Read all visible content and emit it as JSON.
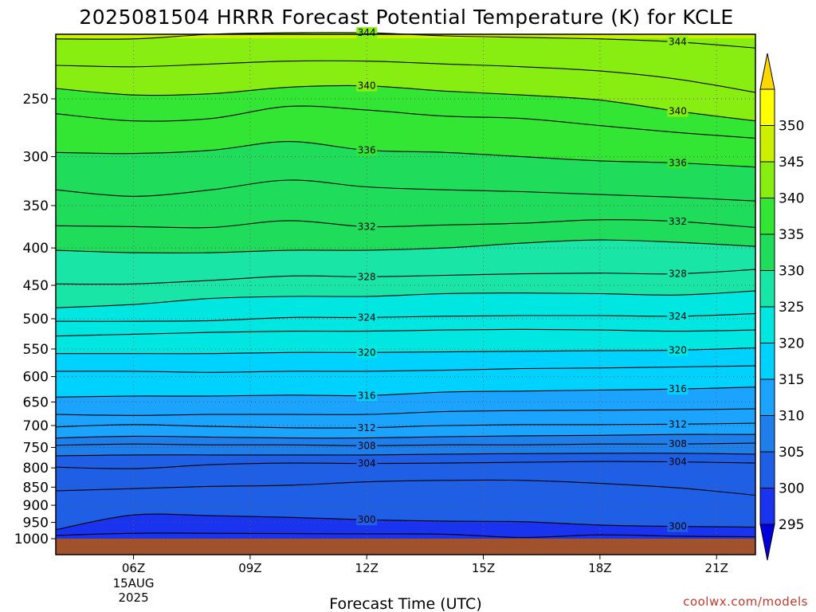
{
  "chart_data": {
    "type": "contour",
    "title": "2025081504 HRRR Forecast Potential Temperature (K) for KCLE",
    "xlabel": "Forecast Time (UTC)",
    "ylabel": "",
    "credit": "coolwx.com/models",
    "x_range_hours": [
      4,
      22
    ],
    "y_range_hpa": [
      200,
      1025
    ],
    "x_ticks": [
      {
        "hour": 6,
        "label": "06Z",
        "date_line1": "15AUG",
        "date_line2": "2025"
      },
      {
        "hour": 9,
        "label": "09Z"
      },
      {
        "hour": 12,
        "label": "12Z"
      },
      {
        "hour": 15,
        "label": "15Z"
      },
      {
        "hour": 18,
        "label": "18Z"
      },
      {
        "hour": 21,
        "label": "21Z"
      }
    ],
    "y_ticks": [
      {
        "p": 250,
        "label": "250"
      },
      {
        "p": 300,
        "label": "300"
      },
      {
        "p": 350,
        "label": "350"
      },
      {
        "p": 400,
        "label": "400"
      },
      {
        "p": 450,
        "label": "450"
      },
      {
        "p": 500,
        "label": "500"
      },
      {
        "p": 550,
        "label": "550"
      },
      {
        "p": 600,
        "label": "600"
      },
      {
        "p": 650,
        "label": "650"
      },
      {
        "p": 700,
        "label": "700"
      },
      {
        "p": 750,
        "label": "750"
      },
      {
        "p": 800,
        "label": "800"
      },
      {
        "p": 850,
        "label": "850"
      },
      {
        "p": 900,
        "label": "900"
      },
      {
        "p": 950,
        "label": "950"
      },
      {
        "p": 1000,
        "label": "1000"
      }
    ],
    "colorbar": {
      "levels": [
        295,
        300,
        305,
        310,
        315,
        320,
        325,
        330,
        335,
        340,
        345,
        350
      ],
      "labels": [
        "295",
        "300",
        "305",
        "310",
        "315",
        "320",
        "325",
        "330",
        "335",
        "340",
        "345",
        "350"
      ],
      "colors": [
        "#0000dd",
        "#1a33ee",
        "#1f5fe6",
        "#1f7fea",
        "#1aa3ff",
        "#00d2ff",
        "#00e6e0",
        "#19e6a6",
        "#1fdc5a",
        "#33e633",
        "#88ee11",
        "#ccf000",
        "#ffff00",
        "#ffd700"
      ],
      "extend": "both"
    },
    "ground": {
      "color": "#a0522d",
      "pressure_hpa": 1000
    },
    "contour_interval_k": 2,
    "times_hours": [
      4,
      6,
      8,
      10,
      12,
      14,
      16,
      18,
      20,
      22
    ],
    "isentropes": [
      {
        "theta": 344,
        "label": "344",
        "p": [
          207,
          207,
          204,
          203,
          203,
          205,
          206,
          207,
          209,
          213
        ]
      },
      {
        "theta": 342,
        "label": "342",
        "p": [
          225,
          226,
          224,
          222,
          222,
          224,
          226,
          229,
          235,
          245
        ]
      },
      {
        "theta": 340,
        "label": "340",
        "p": [
          242,
          247,
          246,
          241,
          240,
          244,
          247,
          251,
          260,
          268
        ]
      },
      {
        "theta": 338,
        "label": "338",
        "p": [
          262,
          268,
          266,
          256,
          259,
          264,
          266,
          272,
          278,
          283
        ]
      },
      {
        "theta": 336,
        "label": "336",
        "p": [
          296,
          297,
          294,
          286,
          294,
          296,
          300,
          304,
          306,
          310
        ]
      },
      {
        "theta": 334,
        "label": "334",
        "p": [
          333,
          340,
          333,
          323,
          330,
          333,
          335,
          338,
          341,
          345
        ]
      },
      {
        "theta": 332,
        "label": "332",
        "p": [
          373,
          374,
          375,
          367,
          374,
          372,
          370,
          366,
          368,
          375
        ]
      },
      {
        "theta": 330,
        "label": "330",
        "p": [
          403,
          406,
          406,
          403,
          403,
          400,
          394,
          390,
          393,
          398
        ]
      },
      {
        "theta": 328,
        "label": "328",
        "p": [
          448,
          448,
          443,
          437,
          438,
          436,
          434,
          433,
          434,
          428
        ]
      },
      {
        "theta": 326,
        "label": "326",
        "p": [
          483,
          478,
          469,
          466,
          466,
          462,
          461,
          462,
          464,
          458
        ]
      },
      {
        "theta": 324,
        "label": "324",
        "p": [
          504,
          504,
          503,
          498,
          498,
          496,
          495,
          495,
          496,
          492
        ]
      },
      {
        "theta": 322,
        "label": "322",
        "p": [
          528,
          525,
          522,
          520,
          520,
          518,
          517,
          518,
          520,
          518
        ]
      },
      {
        "theta": 320,
        "label": "320",
        "p": [
          558,
          558,
          558,
          556,
          556,
          555,
          554,
          553,
          552,
          548
        ]
      },
      {
        "theta": 318,
        "label": "318",
        "p": [
          590,
          590,
          592,
          590,
          590,
          588,
          585,
          584,
          582,
          580
        ]
      },
      {
        "theta": 316,
        "label": "316",
        "p": [
          640,
          638,
          638,
          636,
          637,
          630,
          628,
          626,
          624,
          620
        ]
      },
      {
        "theta": 314,
        "label": "314",
        "p": [
          676,
          678,
          676,
          676,
          676,
          670,
          668,
          667,
          666,
          664
        ]
      },
      {
        "theta": 312,
        "label": "312",
        "p": [
          703,
          698,
          702,
          705,
          705,
          700,
          698,
          698,
          697,
          695
        ]
      },
      {
        "theta": 310,
        "label": "310",
        "p": [
          728,
          724,
          726,
          728,
          728,
          725,
          723,
          722,
          720,
          720
        ]
      },
      {
        "theta": 308,
        "label": "308",
        "p": [
          745,
          742,
          744,
          744,
          746,
          744,
          744,
          742,
          742,
          740
        ]
      },
      {
        "theta": 306,
        "label": "306",
        "p": [
          770,
          768,
          768,
          768,
          768,
          766,
          765,
          764,
          764,
          766
        ]
      },
      {
        "theta": 304,
        "label": "304",
        "p": [
          798,
          802,
          792,
          788,
          789,
          788,
          786,
          784,
          785,
          788
        ]
      },
      {
        "theta": 302,
        "label": "302",
        "p": [
          860,
          854,
          848,
          845,
          836,
          832,
          832,
          840,
          852,
          872
        ]
      },
      {
        "theta": 300,
        "label": "300",
        "p": [
          972,
          928,
          930,
          935,
          942,
          946,
          948,
          958,
          962,
          964
        ]
      },
      {
        "theta": 298,
        "label": "298",
        "p": [
          990,
          983,
          983,
          984,
          985,
          986,
          996,
          988,
          992,
          994
        ]
      }
    ]
  }
}
